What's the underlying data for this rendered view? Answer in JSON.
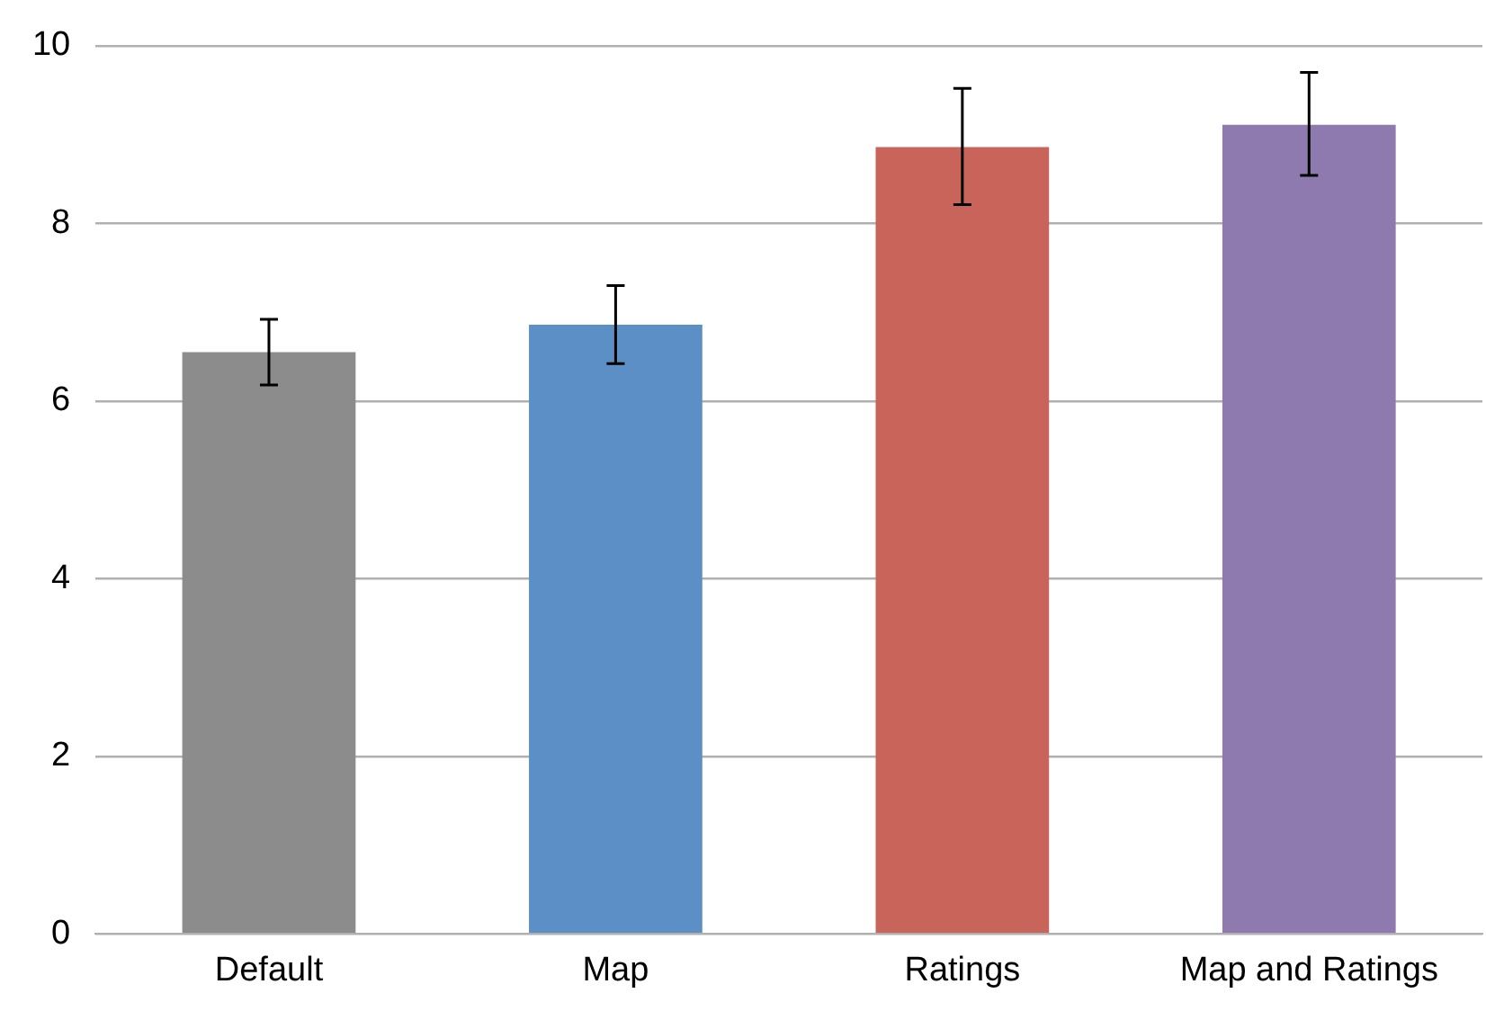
{
  "chart_data": {
    "type": "bar",
    "categories": [
      "Default",
      "Map",
      "Ratings",
      "Map and Ratings"
    ],
    "values": [
      6.55,
      6.86,
      8.86,
      9.11
    ],
    "colors": [
      "#8c8c8c",
      "#5b8fc5",
      "#c9645a",
      "#8f7aaf"
    ],
    "errors": [
      [
        6.18,
        6.92
      ],
      [
        6.42,
        7.3
      ],
      [
        8.21,
        9.52
      ],
      [
        8.54,
        9.7
      ]
    ],
    "ylim": [
      0,
      10
    ],
    "yticks": [
      0,
      2,
      4,
      6,
      8,
      10
    ],
    "grid": "y",
    "legend": false
  }
}
